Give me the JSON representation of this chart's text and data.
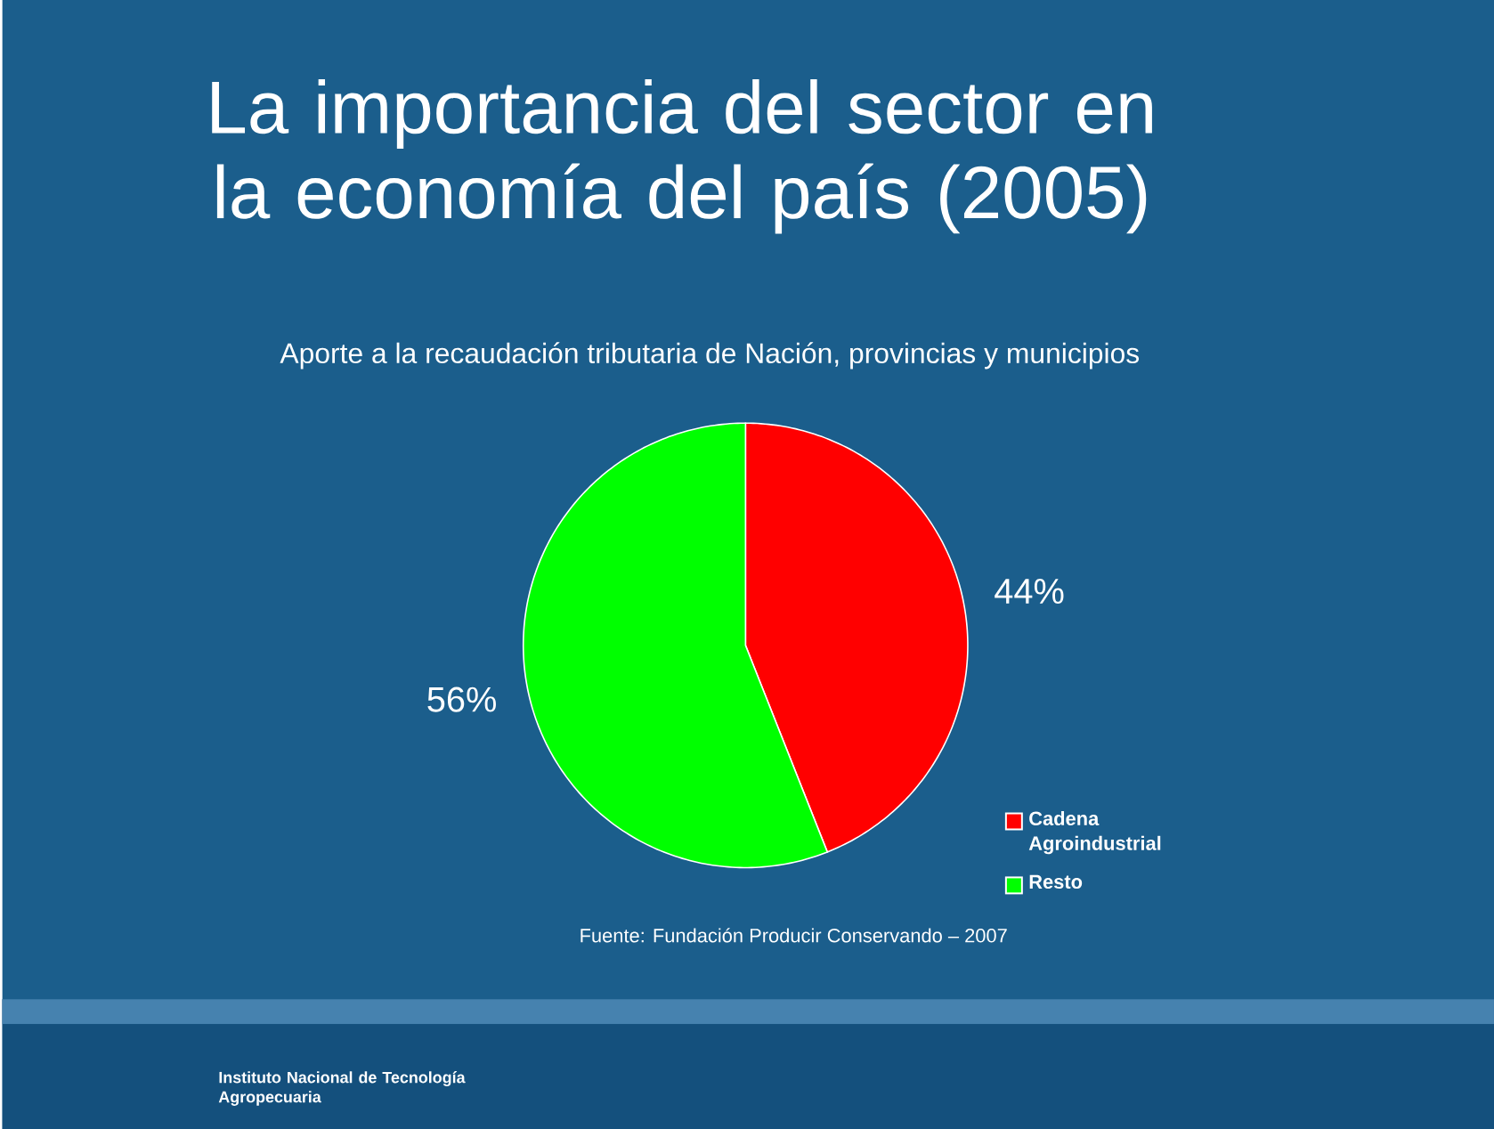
{
  "chart_data": {
    "type": "pie",
    "title": "La importancia del sector en la economía del país (2005)",
    "subtitle": "Aporte a la recaudación tributaria de Nación, provincias y municipios",
    "categories": [
      "Cadena Agroindustrial",
      "Resto"
    ],
    "values": [
      44,
      56
    ],
    "colors": [
      "#ff0000",
      "#00ff00"
    ],
    "value_labels": [
      "44%",
      "56%"
    ],
    "legend": "bottom right",
    "annotations": [
      "Fuente: Fundación Producir Conservando – 2007",
      "Instituto Nacional de Tecnología Agropecuaria"
    ]
  }
}
